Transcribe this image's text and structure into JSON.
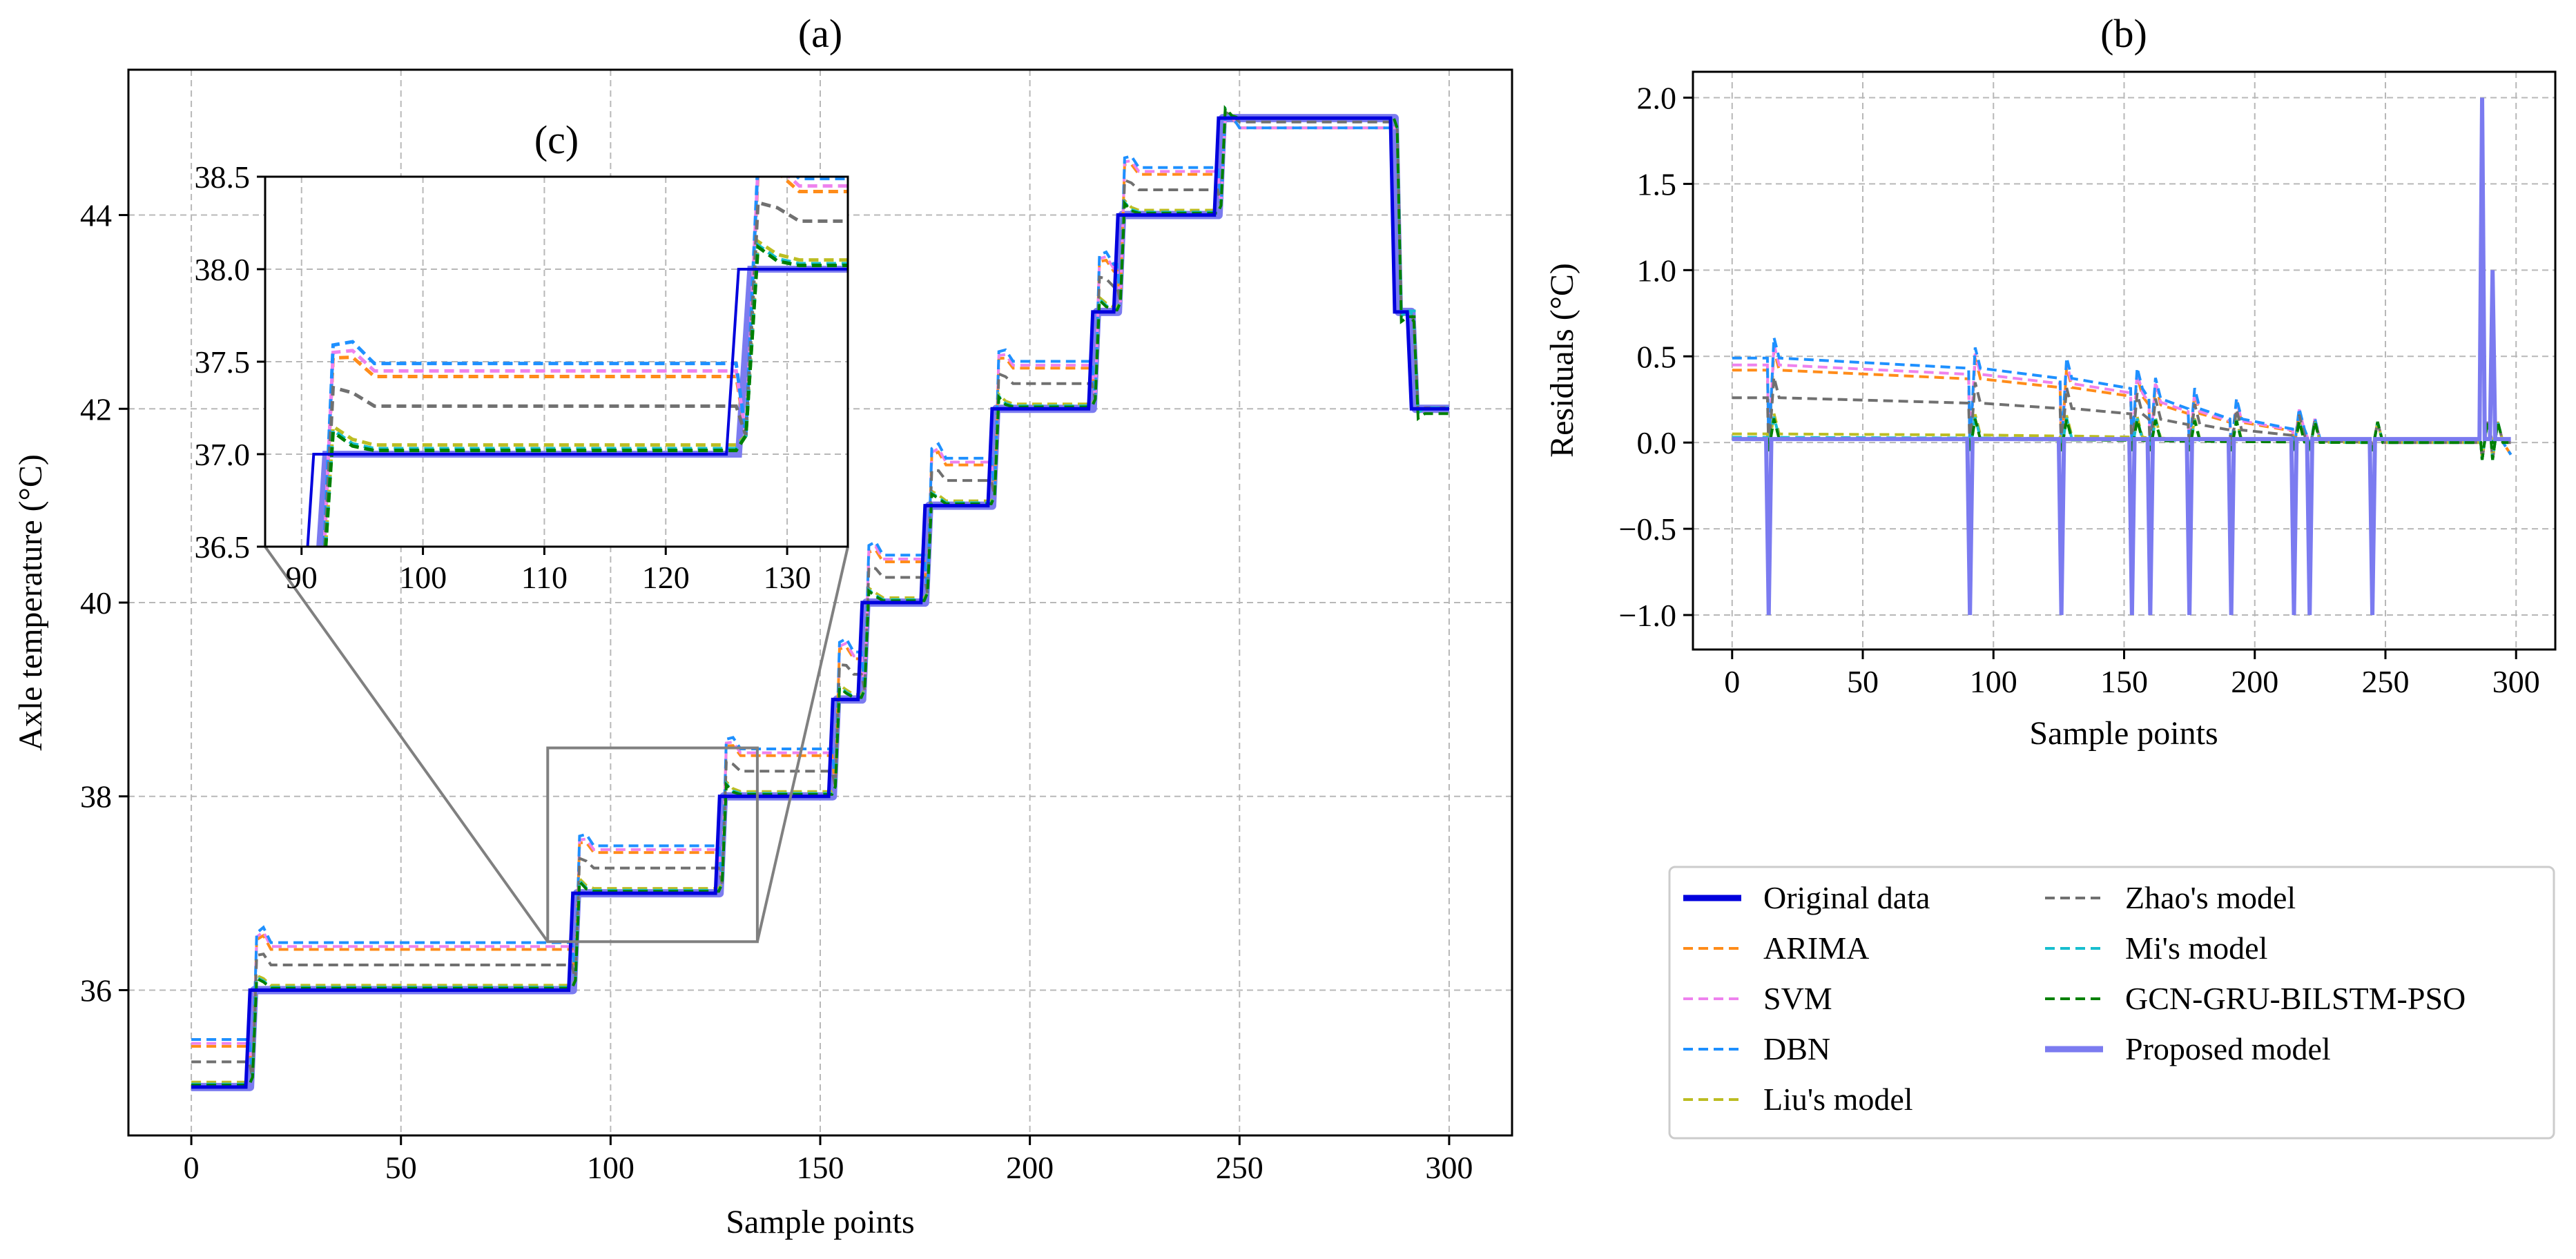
{
  "figure": {
    "background": "#ffffff"
  },
  "legend": {
    "entries": [
      {
        "label": "Original data",
        "color": "#0000dd",
        "style": "solid-thick"
      },
      {
        "label": "ARIMA",
        "color": "#ff8c1a",
        "style": "dashed"
      },
      {
        "label": "SVM",
        "color": "#ee82ee",
        "style": "dashed"
      },
      {
        "label": "DBN",
        "color": "#1e90ff",
        "style": "dashed"
      },
      {
        "label": "Liu's model",
        "color": "#bcbd22",
        "style": "dashed"
      },
      {
        "label": "Zhao's model",
        "color": "#707070",
        "style": "dashed"
      },
      {
        "label": "Mi's model",
        "color": "#17becf",
        "style": "dashed"
      },
      {
        "label": "GCN-GRU-BILSTM-PSO",
        "color": "#008000",
        "style": "dashed"
      },
      {
        "label": "Proposed model",
        "color": "#7b7bf0",
        "style": "solid-thick"
      }
    ]
  },
  "chart_data": [
    {
      "id": "a",
      "type": "line",
      "title": "(a)",
      "xlabel": "Sample points",
      "ylabel": "Axle temperature (°C)",
      "xlim": [
        -15,
        315
      ],
      "ylim": [
        34.5,
        45.5
      ],
      "xticks": [
        0,
        50,
        100,
        150,
        200,
        250,
        300
      ],
      "yticks": [
        36,
        38,
        40,
        42,
        44
      ],
      "grid": true,
      "original": {
        "x": [
          0,
          13,
          14,
          90,
          91,
          125,
          126,
          152,
          153,
          159,
          160,
          174,
          175,
          190,
          191,
          214,
          215,
          220,
          221,
          244,
          245,
          286,
          287,
          290,
          291,
          300
        ],
        "y": [
          35,
          35,
          36,
          36,
          37,
          37,
          38,
          38,
          39,
          39,
          40,
          40,
          41,
          41,
          42,
          42,
          43,
          43,
          44,
          44,
          45,
          45,
          43,
          43,
          42,
          42
        ]
      },
      "step_levels": {
        "x": [
          0,
          14,
          91,
          126,
          153,
          160,
          175,
          191,
          215,
          221,
          245,
          287,
          291
        ],
        "original": [
          35,
          36,
          37,
          38,
          39,
          40,
          41,
          42,
          43,
          44,
          45,
          43,
          42
        ]
      },
      "offsets_by_series": {
        "ARIMA": 0.42,
        "SVM": 0.45,
        "DBN": 0.49,
        "Liu's model": 0.05,
        "Zhao's model": 0.26,
        "Mi's model": 0.03,
        "GCN-GRU-BILSTM-PSO": 0.02,
        "Proposed model": 0.0
      },
      "zoom_box": {
        "x": [
          85,
          135
        ],
        "y": [
          36.5,
          38.5
        ]
      },
      "inset": {
        "title": "(c)",
        "xlim": [
          87,
          135
        ],
        "ylim": [
          36.5,
          38.5
        ],
        "xticks": [
          90,
          100,
          110,
          120,
          130
        ],
        "yticks": [
          36.5,
          37.0,
          37.5,
          38.0,
          38.5
        ],
        "ytick_labels": [
          "36.5",
          "37.0",
          "37.5",
          "38.0",
          "38.5"
        ]
      }
    },
    {
      "id": "b",
      "type": "line",
      "title": "(b)",
      "xlabel": "Sample points",
      "ylabel": "Residuals (°C)",
      "xlim": [
        -15,
        315
      ],
      "ylim": [
        -1.2,
        2.15
      ],
      "xticks": [
        0,
        50,
        100,
        150,
        200,
        250,
        300
      ],
      "yticks": [
        -1.0,
        -0.5,
        0.0,
        0.5,
        1.0,
        1.5,
        2.0
      ],
      "ytick_labels": [
        "−1.0",
        "−0.5",
        "0.0",
        "0.5",
        "1.0",
        "1.5",
        "2.0"
      ],
      "grid": true,
      "spikes": {
        "x": [
          14,
          91,
          126,
          153,
          160,
          175,
          191,
          215,
          221,
          245,
          287,
          291
        ],
        "proposed_value": [
          -1,
          -1,
          -1,
          -1,
          -1,
          -1,
          -1,
          -1,
          -1,
          -1,
          2,
          1
        ]
      }
    }
  ]
}
